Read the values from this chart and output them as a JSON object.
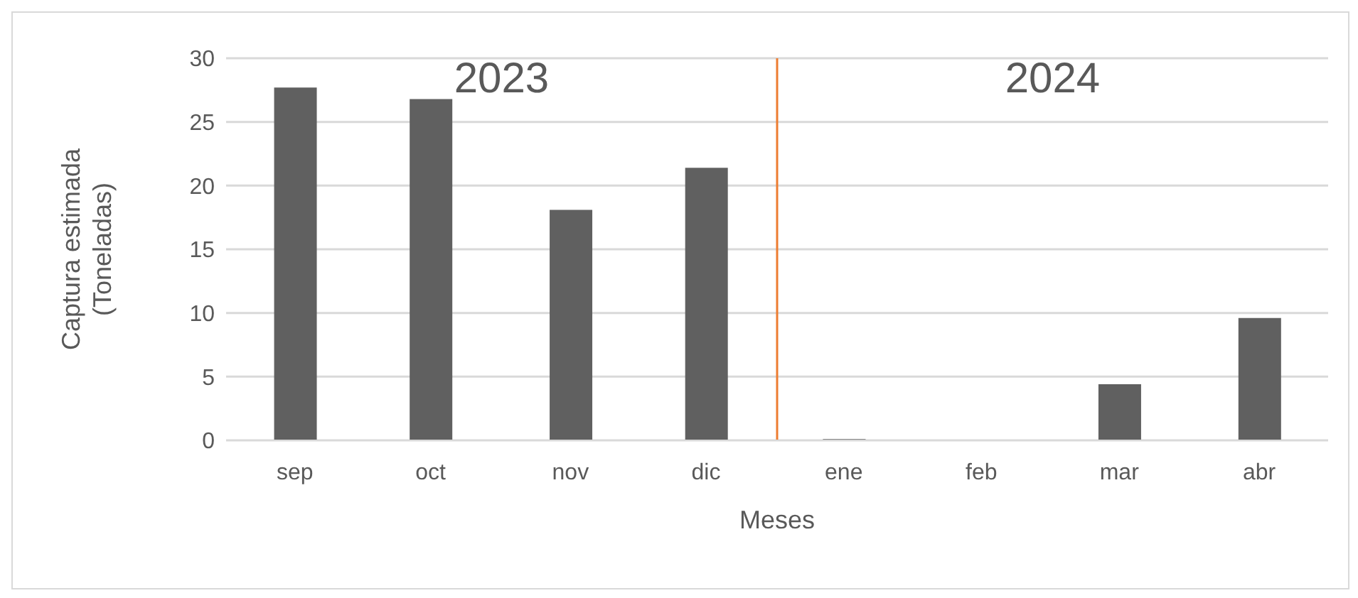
{
  "chart_data": {
    "type": "bar",
    "x": [
      "2023-09-16",
      "2023-10-16",
      "2023-11-16",
      "2023-12-16",
      "2024-01-16",
      "2024-02-15",
      "2024-03-16",
      "2024-04-16"
    ],
    "values": [
      27.7,
      26.8,
      18.1,
      21.4,
      0.1,
      0,
      4.4,
      9.6
    ],
    "color": "#606060",
    "xlim": [
      "2023-09-01",
      "2024-05-01"
    ],
    "xticks": [
      {
        "value": "2023-09-16",
        "label": "sep"
      },
      {
        "value": "2023-10-16",
        "label": "oct"
      },
      {
        "value": "2023-11-16",
        "label": "nov"
      },
      {
        "value": "2023-12-16",
        "label": "dic"
      },
      {
        "value": "2024-01-16",
        "label": "ene"
      },
      {
        "value": "2024-02-15",
        "label": "feb"
      },
      {
        "value": "2024-03-16",
        "label": "mar"
      },
      {
        "value": "2024-04-16",
        "label": "abr"
      }
    ],
    "ylim": [
      0,
      30
    ],
    "yticks": [
      0,
      5,
      10,
      15,
      20,
      25,
      30
    ],
    "grid": "y",
    "xlabel": "Meses",
    "ylabel": "Captura estimada\n(Toneladas)",
    "ref_lines": [
      {
        "axis": "x",
        "value": "2024-01-01",
        "color": "#ed7d31"
      }
    ],
    "annotations": [
      "2023",
      "2024"
    ]
  }
}
